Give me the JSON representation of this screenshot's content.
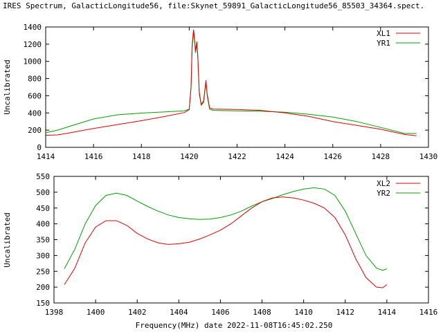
{
  "title": "IRES Spectrum, GalacticLongitude56, file:Skynet_59891_GalacticLongitude56_85503_34364.spect.",
  "chart_data": [
    {
      "type": "line",
      "ylabel": "Uncalibrated",
      "xlabel": "",
      "xlim": [
        1414,
        1430
      ],
      "ylim": [
        0,
        1400
      ],
      "xticks": [
        1414,
        1416,
        1418,
        1420,
        1422,
        1424,
        1426,
        1428,
        1430
      ],
      "yticks": [
        0,
        200,
        400,
        600,
        800,
        1000,
        1200,
        1400
      ],
      "legend_position": "top-right",
      "series": [
        {
          "name": "XL1",
          "color": "#e00000",
          "points": [
            [
              1414.0,
              140
            ],
            [
              1414.5,
              145
            ],
            [
              1415.0,
              168
            ],
            [
              1416.0,
              220
            ],
            [
              1417.0,
              265
            ],
            [
              1418.0,
              310
            ],
            [
              1419.0,
              360
            ],
            [
              1419.8,
              405
            ],
            [
              1420.0,
              440
            ],
            [
              1420.08,
              720
            ],
            [
              1420.12,
              1180
            ],
            [
              1420.18,
              1370
            ],
            [
              1420.22,
              1280
            ],
            [
              1420.26,
              1120
            ],
            [
              1420.32,
              1230
            ],
            [
              1420.36,
              1060
            ],
            [
              1420.42,
              640
            ],
            [
              1420.5,
              500
            ],
            [
              1420.6,
              540
            ],
            [
              1420.7,
              780
            ],
            [
              1420.75,
              620
            ],
            [
              1420.85,
              460
            ],
            [
              1421.0,
              445
            ],
            [
              1422.0,
              440
            ],
            [
              1423.0,
              430
            ],
            [
              1424.0,
              400
            ],
            [
              1425.0,
              360
            ],
            [
              1426.0,
              300
            ],
            [
              1427.0,
              255
            ],
            [
              1428.0,
              210
            ],
            [
              1429.0,
              150
            ],
            [
              1429.5,
              135
            ]
          ]
        },
        {
          "name": "YR1",
          "color": "#00a000",
          "points": [
            [
              1414.0,
              170
            ],
            [
              1414.5,
              200
            ],
            [
              1415.0,
              245
            ],
            [
              1416.0,
              330
            ],
            [
              1417.0,
              378
            ],
            [
              1418.0,
              398
            ],
            [
              1419.0,
              412
            ],
            [
              1419.8,
              425
            ],
            [
              1420.0,
              445
            ],
            [
              1420.08,
              700
            ],
            [
              1420.12,
              1150
            ],
            [
              1420.18,
              1340
            ],
            [
              1420.22,
              1250
            ],
            [
              1420.26,
              1100
            ],
            [
              1420.32,
              1200
            ],
            [
              1420.36,
              1040
            ],
            [
              1420.42,
              620
            ],
            [
              1420.5,
              490
            ],
            [
              1420.6,
              520
            ],
            [
              1420.7,
              760
            ],
            [
              1420.75,
              600
            ],
            [
              1420.85,
              445
            ],
            [
              1421.0,
              430
            ],
            [
              1422.0,
              425
            ],
            [
              1423.0,
              420
            ],
            [
              1424.0,
              408
            ],
            [
              1425.0,
              385
            ],
            [
              1426.0,
              352
            ],
            [
              1427.0,
              300
            ],
            [
              1428.0,
              232
            ],
            [
              1429.0,
              162
            ],
            [
              1429.5,
              162
            ]
          ]
        }
      ]
    },
    {
      "type": "line",
      "ylabel": "Uncalibrated",
      "xlabel": "Frequency(MHz) date 2022-11-08T16:45:02.250",
      "xlim": [
        1398,
        1416
      ],
      "ylim": [
        150,
        550
      ],
      "xticks": [
        1398,
        1400,
        1402,
        1404,
        1406,
        1408,
        1410,
        1412,
        1414,
        1416
      ],
      "yticks": [
        150,
        200,
        250,
        300,
        350,
        400,
        450,
        500,
        550
      ],
      "legend_position": "top-right",
      "series": [
        {
          "name": "XL2",
          "color": "#e00000",
          "points": [
            [
              1398.5,
              208
            ],
            [
              1399.0,
              260
            ],
            [
              1399.5,
              340
            ],
            [
              1400.0,
              390
            ],
            [
              1400.5,
              410
            ],
            [
              1401.0,
              410
            ],
            [
              1401.5,
              395
            ],
            [
              1402.0,
              370
            ],
            [
              1402.5,
              352
            ],
            [
              1403.0,
              340
            ],
            [
              1403.5,
              335
            ],
            [
              1404.0,
              337
            ],
            [
              1404.5,
              342
            ],
            [
              1405.0,
              352
            ],
            [
              1405.5,
              365
            ],
            [
              1406.0,
              380
            ],
            [
              1406.5,
              400
            ],
            [
              1407.0,
              425
            ],
            [
              1407.5,
              450
            ],
            [
              1408.0,
              470
            ],
            [
              1408.5,
              482
            ],
            [
              1409.0,
              485
            ],
            [
              1409.5,
              482
            ],
            [
              1410.0,
              475
            ],
            [
              1410.5,
              465
            ],
            [
              1411.0,
              450
            ],
            [
              1411.5,
              420
            ],
            [
              1412.0,
              365
            ],
            [
              1412.5,
              290
            ],
            [
              1413.0,
              230
            ],
            [
              1413.5,
              200
            ],
            [
              1413.8,
              198
            ],
            [
              1414.0,
              208
            ]
          ]
        },
        {
          "name": "YR2",
          "color": "#00a000",
          "points": [
            [
              1398.5,
              258
            ],
            [
              1399.0,
              320
            ],
            [
              1399.5,
              400
            ],
            [
              1400.0,
              458
            ],
            [
              1400.5,
              490
            ],
            [
              1401.0,
              497
            ],
            [
              1401.5,
              490
            ],
            [
              1402.0,
              472
            ],
            [
              1402.5,
              455
            ],
            [
              1403.0,
              440
            ],
            [
              1403.5,
              428
            ],
            [
              1404.0,
              420
            ],
            [
              1404.5,
              416
            ],
            [
              1405.0,
              414
            ],
            [
              1405.5,
              415
            ],
            [
              1406.0,
              420
            ],
            [
              1406.5,
              428
            ],
            [
              1407.0,
              440
            ],
            [
              1407.5,
              456
            ],
            [
              1408.0,
              470
            ],
            [
              1408.5,
              480
            ],
            [
              1409.0,
              492
            ],
            [
              1409.5,
              502
            ],
            [
              1410.0,
              510
            ],
            [
              1410.5,
              514
            ],
            [
              1411.0,
              510
            ],
            [
              1411.5,
              490
            ],
            [
              1412.0,
              440
            ],
            [
              1412.5,
              370
            ],
            [
              1413.0,
              300
            ],
            [
              1413.5,
              260
            ],
            [
              1413.8,
              253
            ],
            [
              1414.0,
              258
            ]
          ]
        }
      ]
    }
  ]
}
